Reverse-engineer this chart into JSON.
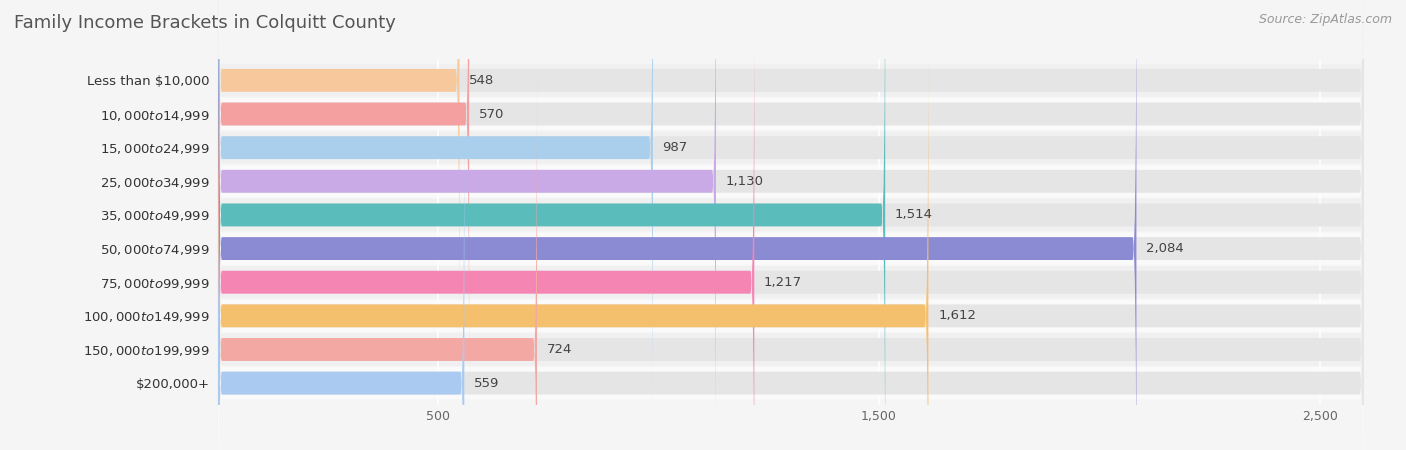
{
  "title": "Family Income Brackets in Colquitt County",
  "source": "Source: ZipAtlas.com",
  "categories": [
    "Less than $10,000",
    "$10,000 to $14,999",
    "$15,000 to $24,999",
    "$25,000 to $34,999",
    "$35,000 to $49,999",
    "$50,000 to $74,999",
    "$75,000 to $99,999",
    "$100,000 to $149,999",
    "$150,000 to $199,999",
    "$200,000+"
  ],
  "values": [
    548,
    570,
    987,
    1130,
    1514,
    2084,
    1217,
    1612,
    724,
    559
  ],
  "bar_colors": [
    "#f7c89b",
    "#f4a0a0",
    "#aacfed",
    "#c9aae6",
    "#5bbcbc",
    "#8b8bd4",
    "#f585b2",
    "#f5c06e",
    "#f4a8a4",
    "#aacaf2"
  ],
  "background_color": "#f5f5f5",
  "bar_bg_color": "#e5e5e5",
  "row_bg_colors": [
    "#f0f0f0",
    "#fafafa"
  ],
  "xlim": [
    0,
    2600
  ],
  "xticks": [
    500,
    1500,
    2500
  ],
  "xtick_labels": [
    "500",
    "1,500",
    "2,500"
  ],
  "title_color": "#555555",
  "title_fontsize": 13,
  "label_fontsize": 9.5,
  "value_fontsize": 9.5,
  "source_fontsize": 9
}
